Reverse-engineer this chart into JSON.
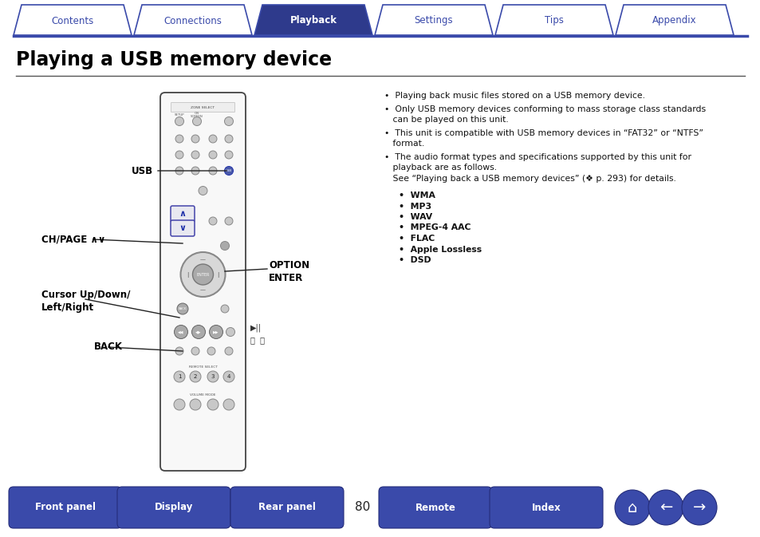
{
  "bg_color": "#ffffff",
  "tab_color_active": "#2e3a8c",
  "tab_color_inactive": "#ffffff",
  "tab_border_color": "#3a4aaa",
  "tab_text_color_active": "#ffffff",
  "tab_text_color_inactive": "#3a4aaa",
  "tabs": [
    "Contents",
    "Connections",
    "Playback",
    "Settings",
    "Tips",
    "Appendix"
  ],
  "active_tab": 2,
  "title": "Playing a USB memory device",
  "title_color": "#000000",
  "separator_color": "#555555",
  "bullet_points": [
    "Playing back music files stored on a USB memory device.",
    "Only USB memory devices conforming to mass storage class standards\ncan be played on this unit.",
    "This unit is compatible with USB memory devices in “FAT32” or “NTFS”\nformat.",
    "The audio format types and specifications supported by this unit for\nplayback are as follows.\nSee “Playing back a USB memory devices” (❖ p. 293) for details."
  ],
  "sub_bullets": [
    "WMA",
    "MP3",
    "WAV",
    "MPEG-4 AAC",
    "FLAC",
    "Apple Lossless",
    "DSD"
  ],
  "bottom_buttons": [
    "Front panel",
    "Display",
    "Rear panel",
    "Remote",
    "Index"
  ],
  "bottom_button_color": "#3a4aaa",
  "bottom_button_text_color": "#ffffff",
  "page_number": "80"
}
